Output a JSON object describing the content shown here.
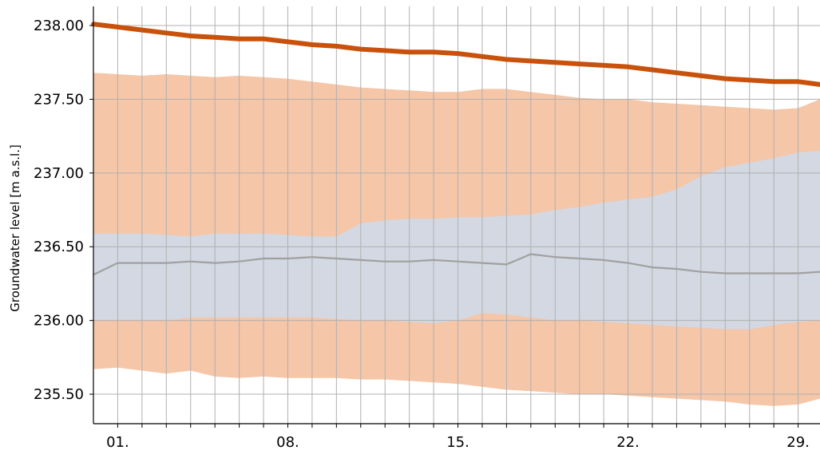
{
  "chart_data": {
    "type": "area",
    "title": "",
    "xlabel": "",
    "ylabel": "Groundwater level [m a.s.l.]",
    "xlim": [
      0,
      29.9
    ],
    "ylim": [
      235.3,
      238.13
    ],
    "grid": true,
    "y_ticks": [
      235.5,
      236.0,
      236.5,
      237.0,
      237.5,
      238.0
    ],
    "y_tick_labels": [
      "235.50",
      "236.00",
      "236.50",
      "237.00",
      "237.50",
      "238.00"
    ],
    "x_ticks": [
      1,
      8,
      15,
      22,
      29
    ],
    "x_tick_labels": [
      "01.",
      "08.",
      "15.",
      "22.",
      "29."
    ],
    "x": [
      0,
      1,
      2,
      3,
      4,
      5,
      6,
      7,
      8,
      9,
      10,
      11,
      12,
      13,
      14,
      15,
      16,
      17,
      18,
      19,
      20,
      21,
      22,
      23,
      24,
      25,
      26,
      27,
      28,
      29,
      29.9
    ],
    "orange_band": {
      "color": "#f5c6a7",
      "lower": [
        235.67,
        235.68,
        235.66,
        235.64,
        235.66,
        235.62,
        235.61,
        235.62,
        235.61,
        235.61,
        235.61,
        235.6,
        235.6,
        235.59,
        235.58,
        235.57,
        235.55,
        235.53,
        235.52,
        235.51,
        235.5,
        235.5,
        235.49,
        235.48,
        235.47,
        235.46,
        235.45,
        235.43,
        235.42,
        235.43,
        235.47
      ],
      "upper": [
        237.68,
        237.67,
        237.66,
        237.67,
        237.66,
        237.65,
        237.66,
        237.65,
        237.64,
        237.62,
        237.6,
        237.58,
        237.57,
        237.56,
        237.55,
        237.55,
        237.57,
        237.57,
        237.55,
        237.53,
        237.51,
        237.5,
        237.5,
        237.48,
        237.47,
        237.46,
        237.45,
        237.44,
        237.43,
        237.44,
        237.5
      ]
    },
    "gray_band": {
      "color": "#d3d8e2",
      "lower": [
        236.0,
        236.0,
        236.0,
        236.0,
        236.02,
        236.02,
        236.02,
        236.02,
        236.02,
        236.02,
        236.01,
        236.0,
        236.0,
        235.99,
        235.98,
        236.0,
        236.05,
        236.04,
        236.02,
        236.0,
        236.0,
        235.99,
        235.98,
        235.97,
        235.96,
        235.95,
        235.94,
        235.94,
        235.97,
        235.99,
        236.0
      ],
      "upper": [
        236.59,
        236.59,
        236.59,
        236.58,
        236.57,
        236.59,
        236.59,
        236.59,
        236.58,
        236.57,
        236.57,
        236.66,
        236.68,
        236.69,
        236.69,
        236.7,
        236.7,
        236.71,
        236.72,
        236.75,
        236.77,
        236.8,
        236.82,
        236.84,
        236.89,
        236.98,
        237.04,
        237.07,
        237.1,
        237.14,
        237.15
      ]
    },
    "series": [
      {
        "name": "",
        "color": "#c8520c",
        "values": [
          238.01,
          237.99,
          237.97,
          237.95,
          237.93,
          237.92,
          237.91,
          237.91,
          237.89,
          237.87,
          237.86,
          237.84,
          237.83,
          237.82,
          237.82,
          237.81,
          237.79,
          237.77,
          237.76,
          237.75,
          237.74,
          237.73,
          237.72,
          237.7,
          237.68,
          237.66,
          237.64,
          237.63,
          237.62,
          237.62,
          237.6
        ]
      },
      {
        "name": "",
        "color": "#a0a0a0",
        "values": [
          236.31,
          236.39,
          236.39,
          236.39,
          236.4,
          236.39,
          236.4,
          236.42,
          236.42,
          236.43,
          236.42,
          236.41,
          236.4,
          236.4,
          236.41,
          236.4,
          236.39,
          236.38,
          236.45,
          236.43,
          236.42,
          236.41,
          236.39,
          236.36,
          236.35,
          236.33,
          236.32,
          236.32,
          236.32,
          236.32,
          236.33
        ]
      }
    ]
  }
}
